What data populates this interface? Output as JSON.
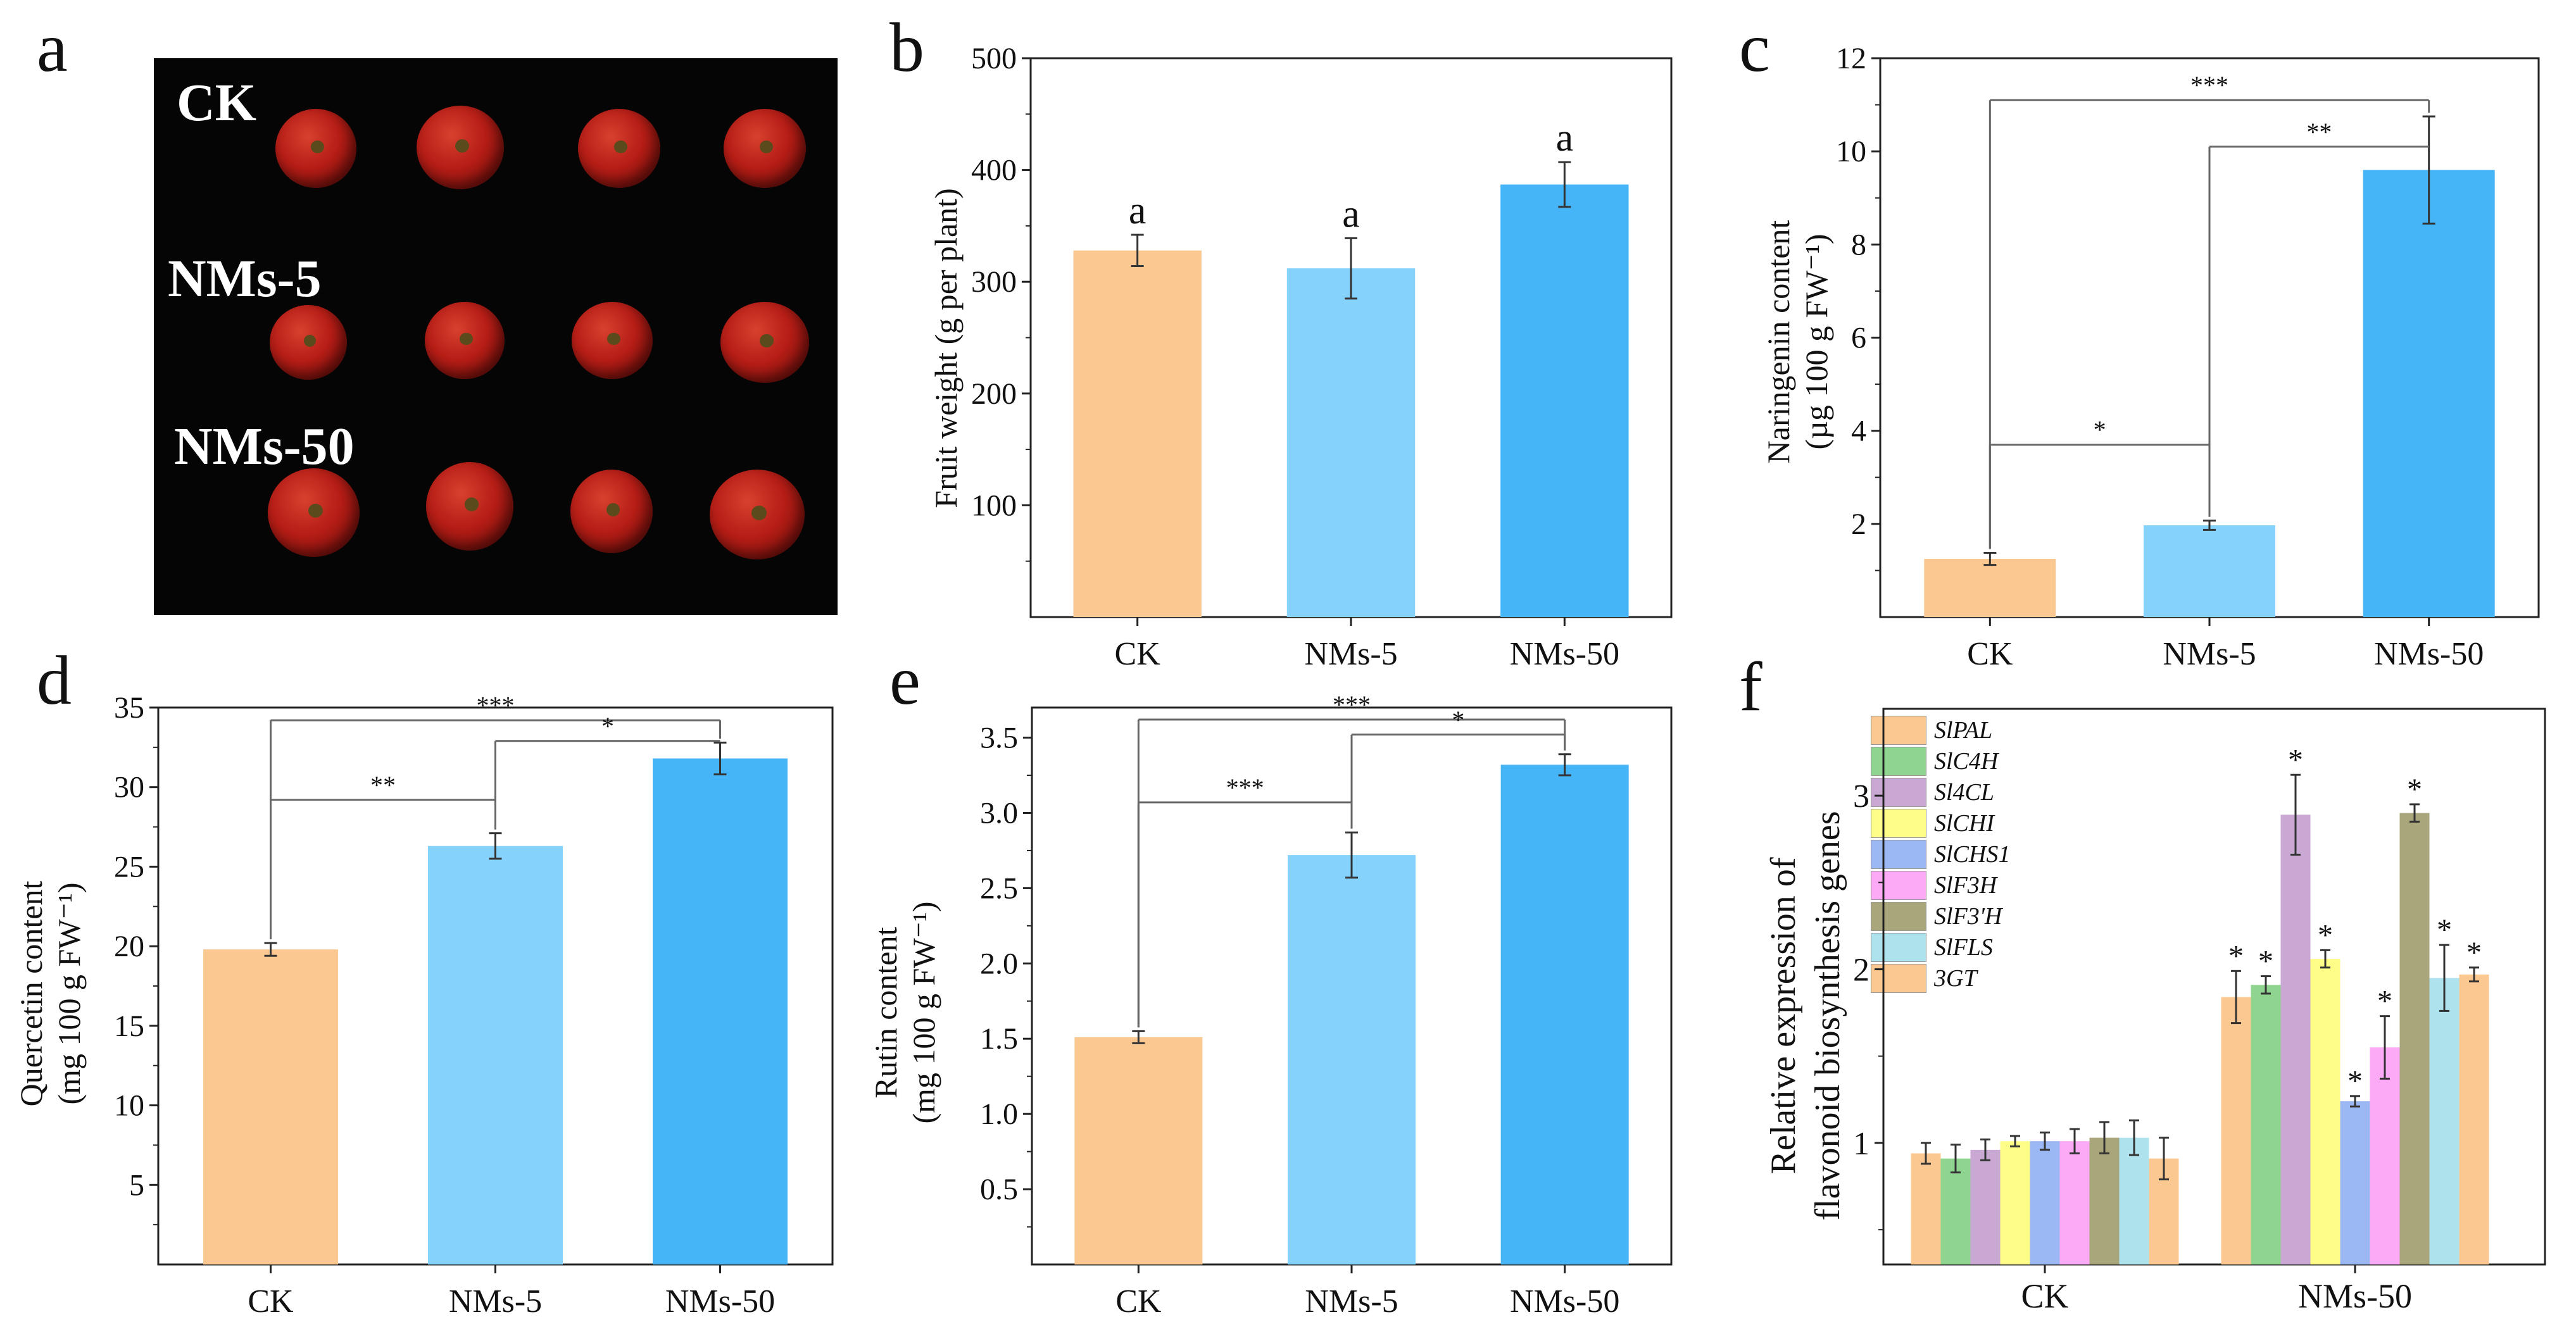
{
  "panel_labels": {
    "a": "a",
    "b": "b",
    "c": "c",
    "d": "d",
    "e": "e",
    "f": "f"
  },
  "photo": {
    "row_labels": [
      "CK",
      "NMs-5",
      "NMs-50"
    ],
    "description_icon": "tomato-fruit-photo"
  },
  "colors": {
    "ck": "#fcc892",
    "nms5": "#85d2fc",
    "nms50": "#45b5f7",
    "genes": [
      "#fcc892",
      "#8fd48f",
      "#c9a8d4",
      "#fdfd88",
      "#9bb8f5",
      "#fcaaf5",
      "#a9a67c",
      "#aee3ee",
      "#fcc892"
    ]
  },
  "chart_data": [
    {
      "id": "b",
      "type": "bar",
      "categories": [
        "CK",
        "NMs-5",
        "NMs-50"
      ],
      "values": [
        328,
        312,
        387
      ],
      "errors": [
        14,
        27,
        20
      ],
      "letters": [
        "a",
        "a",
        "a"
      ],
      "ylabel": "Fruit weight (g per plant)",
      "ylim": [
        0,
        500
      ],
      "yticks": [
        100,
        200,
        300,
        400,
        500
      ]
    },
    {
      "id": "c",
      "type": "bar",
      "categories": [
        "CK",
        "NMs-5",
        "NMs-50"
      ],
      "values": [
        1.25,
        1.97,
        9.6
      ],
      "errors": [
        0.13,
        0.1,
        1.15
      ],
      "ylabel_line1": "Naringenin content",
      "ylabel_line2": "(µg 100 g FW⁻¹)",
      "ylim": [
        0,
        12
      ],
      "yticks": [
        2,
        4,
        6,
        8,
        10,
        12
      ],
      "significance": [
        {
          "from": 0,
          "to": 2,
          "level": 11.1,
          "label": "***"
        },
        {
          "from": 1,
          "to": 2,
          "level": 10.1,
          "label": "**"
        },
        {
          "from": 0,
          "to": 1,
          "level": 3.7,
          "label": "*"
        }
      ]
    },
    {
      "id": "d",
      "type": "bar",
      "categories": [
        "CK",
        "NMs-5",
        "NMs-50"
      ],
      "values": [
        19.8,
        26.3,
        31.8
      ],
      "errors": [
        0.4,
        0.8,
        1.0
      ],
      "ylabel_line1": "Quercetin  content",
      "ylabel_line2": "(mg 100 g FW⁻¹)",
      "ylim": [
        0,
        35
      ],
      "yticks": [
        5,
        10,
        15,
        20,
        25,
        30,
        35
      ],
      "significance": [
        {
          "from": 0,
          "to": 2,
          "level": 34.2,
          "label": "***"
        },
        {
          "from": 1,
          "to": 2,
          "level": 32.9,
          "label": "*"
        },
        {
          "from": 0,
          "to": 1,
          "level": 29.2,
          "label": "**"
        }
      ]
    },
    {
      "id": "e",
      "type": "bar",
      "categories": [
        "CK",
        "NMs-5",
        "NMs-50"
      ],
      "values": [
        1.51,
        2.72,
        3.32
      ],
      "errors": [
        0.04,
        0.15,
        0.07
      ],
      "ylabel_line1": "Rutin content",
      "ylabel_line2": "(mg 100 g FW⁻¹)",
      "ylim": [
        0,
        3.7
      ],
      "yticks": [
        0.5,
        1.0,
        1.5,
        2.0,
        2.5,
        3.0,
        3.5
      ],
      "significance": [
        {
          "from": 0,
          "to": 2,
          "level": 3.62,
          "label": "***"
        },
        {
          "from": 1,
          "to": 2,
          "level": 3.52,
          "label": "*"
        },
        {
          "from": 0,
          "to": 1,
          "level": 3.07,
          "label": "***"
        }
      ]
    },
    {
      "id": "f",
      "type": "bar",
      "categories": [
        "CK",
        "NMs-50"
      ],
      "series": [
        {
          "name": "SlPAL",
          "values": [
            0.94,
            1.84
          ],
          "errors": [
            0.06,
            0.15
          ]
        },
        {
          "name": "SlC4H",
          "values": [
            0.91,
            1.91
          ],
          "errors": [
            0.08,
            0.05
          ]
        },
        {
          "name": "Sl4CL",
          "values": [
            0.96,
            2.89
          ],
          "errors": [
            0.06,
            0.23
          ]
        },
        {
          "name": "SlCHI",
          "values": [
            1.01,
            2.06
          ],
          "errors": [
            0.03,
            0.05
          ]
        },
        {
          "name": "SlCHS1",
          "values": [
            1.01,
            1.24
          ],
          "errors": [
            0.05,
            0.03
          ]
        },
        {
          "name": "SlF3H",
          "values": [
            1.01,
            1.55
          ],
          "errors": [
            0.07,
            0.18
          ]
        },
        {
          "name": "SlF3'H",
          "values": [
            1.03,
            2.9
          ],
          "errors": [
            0.09,
            0.05
          ]
        },
        {
          "name": "SlFLS",
          "values": [
            1.03,
            1.95
          ],
          "errors": [
            0.1,
            0.19
          ]
        },
        {
          "name": "3GT",
          "values": [
            0.91,
            1.97
          ],
          "errors": [
            0.12,
            0.04
          ]
        }
      ],
      "stars": [
        "*",
        "*",
        "*",
        "*",
        "*",
        "*",
        "*",
        "*",
        "*"
      ],
      "ylabel_line1": "Relative expression of",
      "ylabel_line2": "flavonoid biosynthesis genes",
      "ylim": [
        0.3,
        3.5
      ],
      "yticks": [
        1,
        2,
        3
      ]
    }
  ]
}
